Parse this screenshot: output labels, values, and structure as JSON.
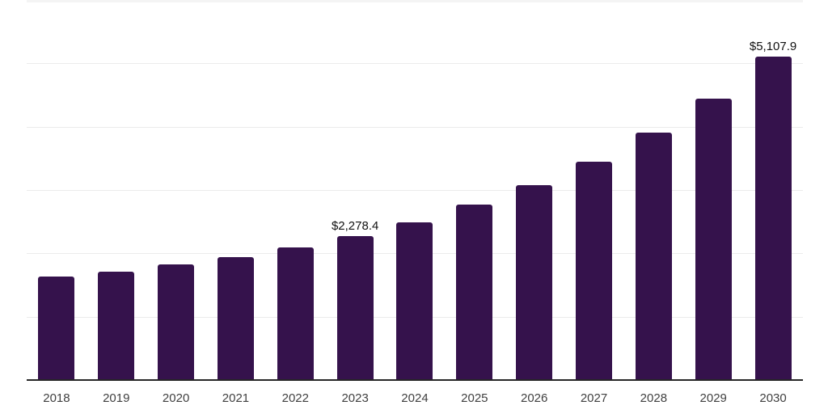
{
  "chart": {
    "colors": {
      "bar": "#35124C",
      "grid": "#ebebeb",
      "grid_top": "#f4f4f4",
      "axis": "#262626",
      "tick_label": "#404040",
      "value_label": "#111111",
      "background": "#ffffff"
    }
  },
  "chart_data": {
    "type": "bar",
    "title": "",
    "xlabel": "",
    "ylabel": "",
    "categories": [
      "2018",
      "2019",
      "2020",
      "2021",
      "2022",
      "2023",
      "2024",
      "2025",
      "2026",
      "2027",
      "2028",
      "2029",
      "2030"
    ],
    "values": [
      1635,
      1715,
      1820,
      1940,
      2095,
      2278.4,
      2490,
      2770,
      3080,
      3450,
      3910,
      4445,
      5107.9
    ],
    "data_labels": [
      "",
      "",
      "",
      "",
      "",
      "$2,278.4",
      "",
      "",
      "",
      "",
      "",
      "",
      "$5,107.9"
    ],
    "ylim": [
      0,
      6000
    ],
    "gridline_interval": 1000,
    "grid": "horizontal",
    "legend": "none",
    "y_axis_labels_visible": false
  }
}
